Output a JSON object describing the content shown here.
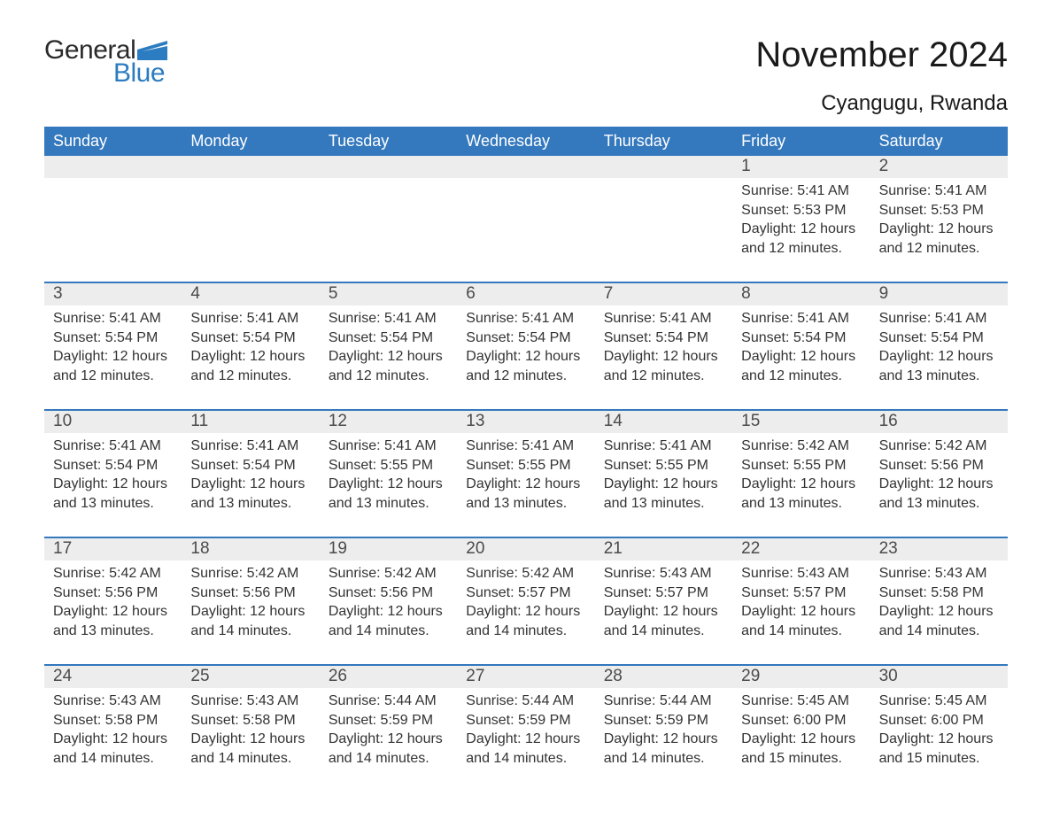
{
  "logo": {
    "general": "General",
    "blue": "Blue",
    "shape_color": "#2b7cc0"
  },
  "title": "November 2024",
  "location": "Cyangugu, Rwanda",
  "colors": {
    "header_bg": "#3478bd",
    "header_text": "#ffffff",
    "daynum_bg": "#ededed",
    "row_border": "#3478bd",
    "body_text": "#333333"
  },
  "weekdays": [
    "Sunday",
    "Monday",
    "Tuesday",
    "Wednesday",
    "Thursday",
    "Friday",
    "Saturday"
  ],
  "weeks": [
    [
      {
        "empty": true
      },
      {
        "empty": true
      },
      {
        "empty": true
      },
      {
        "empty": true
      },
      {
        "empty": true
      },
      {
        "day": "1",
        "sunrise": "Sunrise: 5:41 AM",
        "sunset": "Sunset: 5:53 PM",
        "daylight": "Daylight: 12 hours and 12 minutes."
      },
      {
        "day": "2",
        "sunrise": "Sunrise: 5:41 AM",
        "sunset": "Sunset: 5:53 PM",
        "daylight": "Daylight: 12 hours and 12 minutes."
      }
    ],
    [
      {
        "day": "3",
        "sunrise": "Sunrise: 5:41 AM",
        "sunset": "Sunset: 5:54 PM",
        "daylight": "Daylight: 12 hours and 12 minutes."
      },
      {
        "day": "4",
        "sunrise": "Sunrise: 5:41 AM",
        "sunset": "Sunset: 5:54 PM",
        "daylight": "Daylight: 12 hours and 12 minutes."
      },
      {
        "day": "5",
        "sunrise": "Sunrise: 5:41 AM",
        "sunset": "Sunset: 5:54 PM",
        "daylight": "Daylight: 12 hours and 12 minutes."
      },
      {
        "day": "6",
        "sunrise": "Sunrise: 5:41 AM",
        "sunset": "Sunset: 5:54 PM",
        "daylight": "Daylight: 12 hours and 12 minutes."
      },
      {
        "day": "7",
        "sunrise": "Sunrise: 5:41 AM",
        "sunset": "Sunset: 5:54 PM",
        "daylight": "Daylight: 12 hours and 12 minutes."
      },
      {
        "day": "8",
        "sunrise": "Sunrise: 5:41 AM",
        "sunset": "Sunset: 5:54 PM",
        "daylight": "Daylight: 12 hours and 12 minutes."
      },
      {
        "day": "9",
        "sunrise": "Sunrise: 5:41 AM",
        "sunset": "Sunset: 5:54 PM",
        "daylight": "Daylight: 12 hours and 13 minutes."
      }
    ],
    [
      {
        "day": "10",
        "sunrise": "Sunrise: 5:41 AM",
        "sunset": "Sunset: 5:54 PM",
        "daylight": "Daylight: 12 hours and 13 minutes."
      },
      {
        "day": "11",
        "sunrise": "Sunrise: 5:41 AM",
        "sunset": "Sunset: 5:54 PM",
        "daylight": "Daylight: 12 hours and 13 minutes."
      },
      {
        "day": "12",
        "sunrise": "Sunrise: 5:41 AM",
        "sunset": "Sunset: 5:55 PM",
        "daylight": "Daylight: 12 hours and 13 minutes."
      },
      {
        "day": "13",
        "sunrise": "Sunrise: 5:41 AM",
        "sunset": "Sunset: 5:55 PM",
        "daylight": "Daylight: 12 hours and 13 minutes."
      },
      {
        "day": "14",
        "sunrise": "Sunrise: 5:41 AM",
        "sunset": "Sunset: 5:55 PM",
        "daylight": "Daylight: 12 hours and 13 minutes."
      },
      {
        "day": "15",
        "sunrise": "Sunrise: 5:42 AM",
        "sunset": "Sunset: 5:55 PM",
        "daylight": "Daylight: 12 hours and 13 minutes."
      },
      {
        "day": "16",
        "sunrise": "Sunrise: 5:42 AM",
        "sunset": "Sunset: 5:56 PM",
        "daylight": "Daylight: 12 hours and 13 minutes."
      }
    ],
    [
      {
        "day": "17",
        "sunrise": "Sunrise: 5:42 AM",
        "sunset": "Sunset: 5:56 PM",
        "daylight": "Daylight: 12 hours and 13 minutes."
      },
      {
        "day": "18",
        "sunrise": "Sunrise: 5:42 AM",
        "sunset": "Sunset: 5:56 PM",
        "daylight": "Daylight: 12 hours and 14 minutes."
      },
      {
        "day": "19",
        "sunrise": "Sunrise: 5:42 AM",
        "sunset": "Sunset: 5:56 PM",
        "daylight": "Daylight: 12 hours and 14 minutes."
      },
      {
        "day": "20",
        "sunrise": "Sunrise: 5:42 AM",
        "sunset": "Sunset: 5:57 PM",
        "daylight": "Daylight: 12 hours and 14 minutes."
      },
      {
        "day": "21",
        "sunrise": "Sunrise: 5:43 AM",
        "sunset": "Sunset: 5:57 PM",
        "daylight": "Daylight: 12 hours and 14 minutes."
      },
      {
        "day": "22",
        "sunrise": "Sunrise: 5:43 AM",
        "sunset": "Sunset: 5:57 PM",
        "daylight": "Daylight: 12 hours and 14 minutes."
      },
      {
        "day": "23",
        "sunrise": "Sunrise: 5:43 AM",
        "sunset": "Sunset: 5:58 PM",
        "daylight": "Daylight: 12 hours and 14 minutes."
      }
    ],
    [
      {
        "day": "24",
        "sunrise": "Sunrise: 5:43 AM",
        "sunset": "Sunset: 5:58 PM",
        "daylight": "Daylight: 12 hours and 14 minutes."
      },
      {
        "day": "25",
        "sunrise": "Sunrise: 5:43 AM",
        "sunset": "Sunset: 5:58 PM",
        "daylight": "Daylight: 12 hours and 14 minutes."
      },
      {
        "day": "26",
        "sunrise": "Sunrise: 5:44 AM",
        "sunset": "Sunset: 5:59 PM",
        "daylight": "Daylight: 12 hours and 14 minutes."
      },
      {
        "day": "27",
        "sunrise": "Sunrise: 5:44 AM",
        "sunset": "Sunset: 5:59 PM",
        "daylight": "Daylight: 12 hours and 14 minutes."
      },
      {
        "day": "28",
        "sunrise": "Sunrise: 5:44 AM",
        "sunset": "Sunset: 5:59 PM",
        "daylight": "Daylight: 12 hours and 14 minutes."
      },
      {
        "day": "29",
        "sunrise": "Sunrise: 5:45 AM",
        "sunset": "Sunset: 6:00 PM",
        "daylight": "Daylight: 12 hours and 15 minutes."
      },
      {
        "day": "30",
        "sunrise": "Sunrise: 5:45 AM",
        "sunset": "Sunset: 6:00 PM",
        "daylight": "Daylight: 12 hours and 15 minutes."
      }
    ]
  ]
}
